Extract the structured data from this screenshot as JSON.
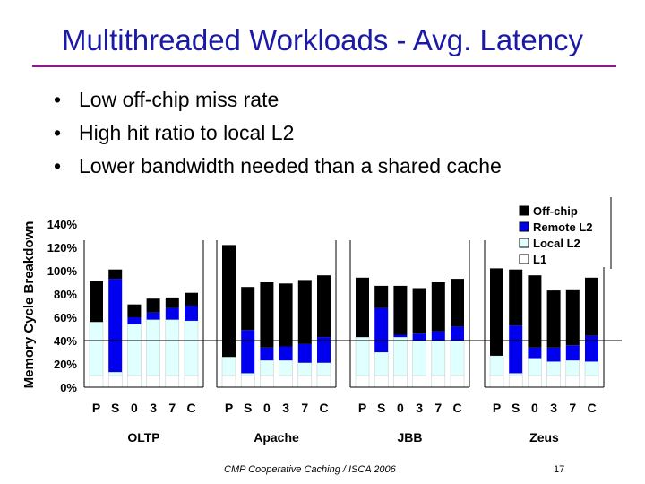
{
  "slide": {
    "title": "Multithreaded Workloads - Avg. Latency",
    "bullets": [
      "Low off-chip miss rate",
      "High hit ratio to local L2",
      "Lower bandwidth needed than a shared cache"
    ],
    "footer": "CMP Cooperative Caching / ISCA 2006",
    "page_number": "17"
  },
  "colors": {
    "offchip": "#000000",
    "remote_l2": "#0000ee",
    "local_l2": "#e0ffff",
    "l1": "#ffffff",
    "title": "#1a1aa6",
    "title_rule": "#8a1a8a"
  },
  "chart_data": {
    "type": "bar",
    "stacked": true,
    "ylabel": "Memory Cycle Breakdown",
    "ylim": [
      0,
      140
    ],
    "yticks": [
      "0%",
      "20%",
      "40%",
      "60%",
      "80%",
      "100%",
      "120%",
      "140%"
    ],
    "grid": false,
    "legend_position": "top-right",
    "series_names": [
      "Off-chip",
      "Remote L2",
      "Local L2",
      "L1"
    ],
    "groups": [
      {
        "name": "OLTP",
        "categories": [
          "P",
          "S",
          "0",
          "3",
          "7",
          "C"
        ],
        "l1": [
          10,
          10,
          10,
          10,
          10,
          10
        ],
        "local_l2": [
          46,
          3,
          44,
          48,
          48,
          47
        ],
        "remote_l2": [
          0,
          80,
          6,
          6,
          10,
          13
        ],
        "offchip": [
          35,
          8,
          11,
          12,
          9,
          11
        ]
      },
      {
        "name": "Apache",
        "categories": [
          "P",
          "S",
          "0",
          "3",
          "7",
          "C"
        ],
        "l1": [
          10,
          10,
          10,
          10,
          10,
          10
        ],
        "local_l2": [
          16,
          2,
          13,
          13,
          11,
          11
        ],
        "remote_l2": [
          0,
          37,
          11,
          12,
          16,
          22
        ],
        "offchip": [
          96,
          37,
          56,
          54,
          55,
          53
        ]
      },
      {
        "name": "JBB",
        "categories": [
          "P",
          "S",
          "0",
          "3",
          "7",
          "C"
        ],
        "l1": [
          10,
          10,
          10,
          10,
          10,
          10
        ],
        "local_l2": [
          33,
          20,
          33,
          30,
          30,
          30
        ],
        "remote_l2": [
          0,
          38,
          2,
          6,
          8,
          12
        ],
        "offchip": [
          51,
          19,
          42,
          39,
          42,
          41
        ]
      },
      {
        "name": "Zeus",
        "categories": [
          "P",
          "S",
          "0",
          "3",
          "7",
          "C"
        ],
        "l1": [
          10,
          10,
          10,
          10,
          10,
          10
        ],
        "local_l2": [
          17,
          2,
          15,
          12,
          13,
          12
        ],
        "remote_l2": [
          0,
          41,
          9,
          12,
          13,
          22
        ],
        "offchip": [
          75,
          48,
          62,
          49,
          48,
          50
        ]
      }
    ]
  }
}
